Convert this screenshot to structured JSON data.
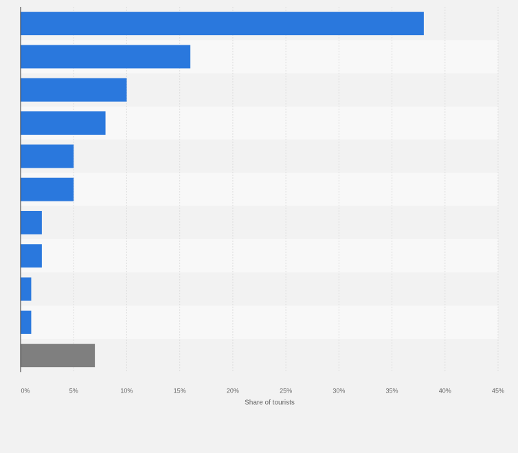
{
  "chart_data": {
    "type": "bar",
    "orientation": "horizontal",
    "title": "",
    "xlabel": "Share of tourists",
    "ylabel": "",
    "categories": [
      "",
      "",
      "",
      "",
      "",
      "",
      "",
      "",
      "",
      "",
      ""
    ],
    "values": [
      38,
      16,
      10,
      8,
      5,
      5,
      2,
      2,
      1,
      1,
      7
    ],
    "bar_colors": [
      "#2a78dd",
      "#2a78dd",
      "#2a78dd",
      "#2a78dd",
      "#2a78dd",
      "#2a78dd",
      "#2a78dd",
      "#2a78dd",
      "#2a78dd",
      "#2a78dd",
      "#7f7f7f"
    ],
    "xlim": [
      0,
      45
    ],
    "x_ticks": [
      0,
      5,
      10,
      15,
      20,
      25,
      30,
      35,
      40,
      45
    ],
    "x_tick_labels": [
      "0%",
      "5%",
      "10%",
      "15%",
      "20%",
      "25%",
      "30%",
      "35%",
      "40%",
      "45%"
    ],
    "grid": true,
    "legend": "none"
  },
  "colors": {
    "background": "#f2f2f2",
    "band_light": "#f8f8f8",
    "band_dark": "#f2f2f2",
    "gridline": "#dddddd",
    "bar": "#2a78dd",
    "other_bar": "#7f7f7f"
  }
}
